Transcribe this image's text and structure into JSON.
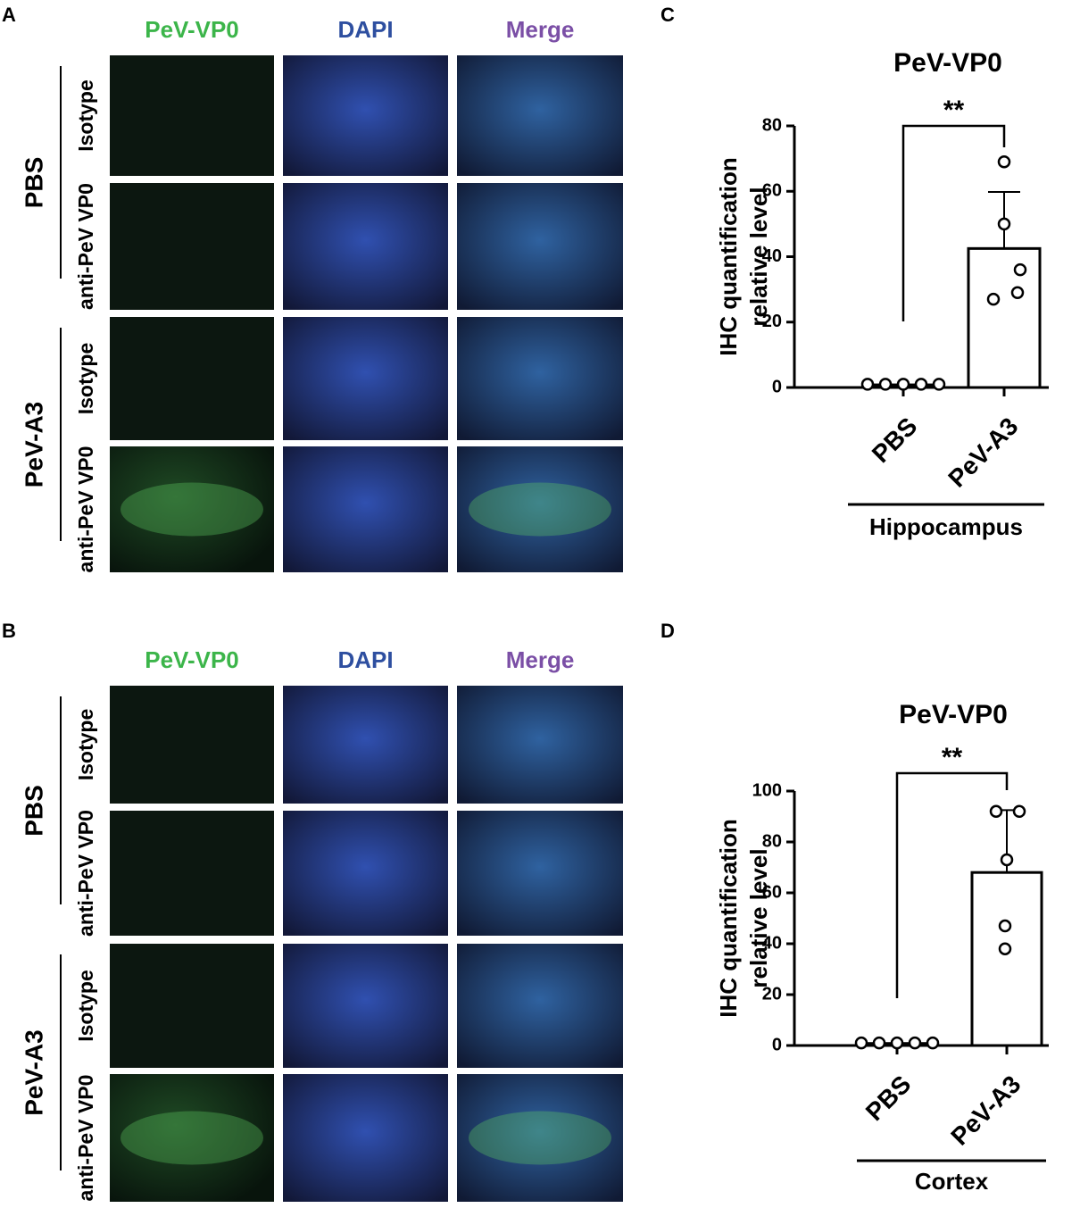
{
  "panels": [
    {
      "label": "A",
      "columns": [
        {
          "name": "PeV-VP0",
          "color": "#3cb54a"
        },
        {
          "name": "DAPI",
          "color": "#2e4fa0"
        },
        {
          "name": "Merge",
          "color": "#7b4fa6"
        }
      ],
      "groups": [
        {
          "name": "PBS",
          "rows": [
            "Isotype",
            "anti-PeV VP0"
          ]
        },
        {
          "name": "PeV-A3",
          "rows": [
            "Isotype",
            "anti-PeV VP0"
          ]
        }
      ]
    },
    {
      "label": "B",
      "columns": [
        {
          "name": "PeV-VP0",
          "color": "#3cb54a"
        },
        {
          "name": "DAPI",
          "color": "#2e4fa0"
        },
        {
          "name": "Merge",
          "color": "#7b4fa6"
        }
      ],
      "groups": [
        {
          "name": "PBS",
          "rows": [
            "Isotype",
            "anti-PeV VP0"
          ]
        },
        {
          "name": "PeV-A3",
          "rows": [
            "Isotype",
            "anti-PeV VP0"
          ]
        }
      ]
    }
  ],
  "chart_data": [
    {
      "type": "bar",
      "panel_label": "C",
      "title": "PeV-VP0",
      "ylabel": [
        "IHC quantification",
        "relative level"
      ],
      "categories": [
        "PBS",
        "PeV-A3"
      ],
      "values": [
        0.8,
        42.5
      ],
      "errors": [
        0,
        17.3
      ],
      "points": [
        [
          1,
          1,
          1,
          1,
          1
        ],
        [
          69,
          50,
          36,
          29,
          27
        ]
      ],
      "significance": "**",
      "group_label": "Hippocampus",
      "ylim": [
        0,
        80
      ],
      "yticks": [
        0,
        20,
        40,
        60,
        80
      ],
      "color": "#ffffff"
    },
    {
      "type": "bar",
      "panel_label": "D",
      "title": "PeV-VP0",
      "ylabel": [
        "IHC quantification",
        "relative level"
      ],
      "categories": [
        "PBS",
        "PeV-A3"
      ],
      "values": [
        0.8,
        68
      ],
      "errors": [
        0,
        24.5
      ],
      "points": [
        [
          1,
          1,
          1,
          1,
          1
        ],
        [
          92,
          92,
          73,
          47,
          38
        ]
      ],
      "significance": "**",
      "group_label": "Cortex",
      "ylim": [
        0,
        100
      ],
      "yticks": [
        0,
        20,
        40,
        60,
        80,
        100
      ],
      "color": "#ffffff"
    }
  ]
}
